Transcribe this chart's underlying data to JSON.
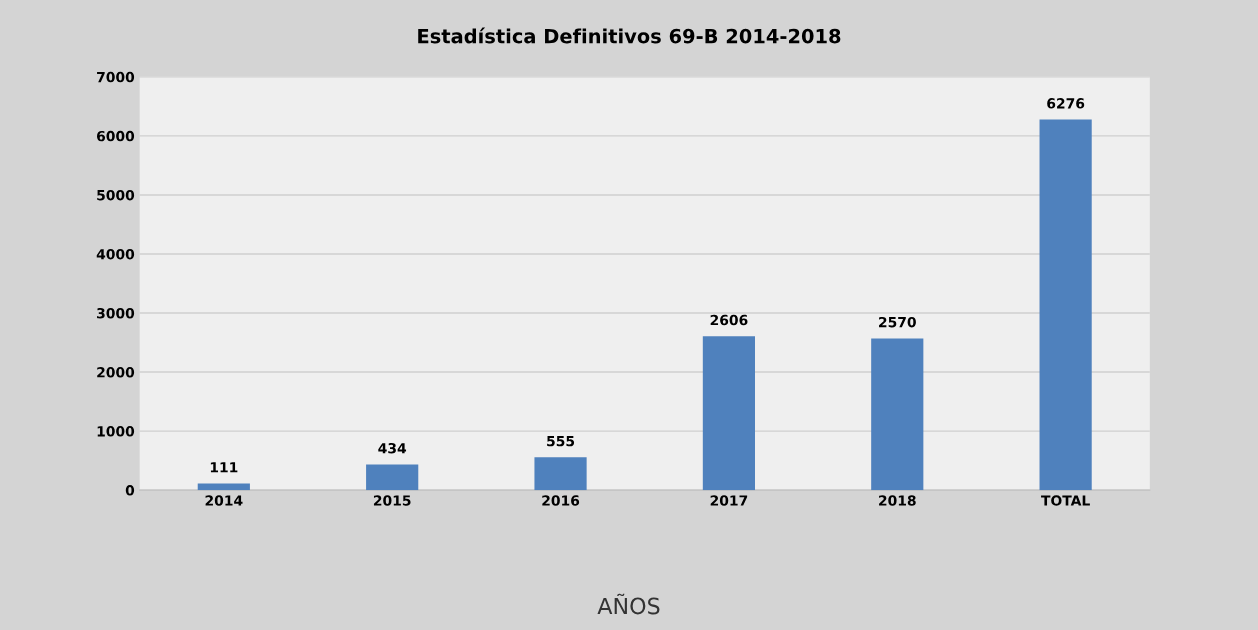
{
  "chart_data": {
    "type": "bar",
    "title": "Estadística Definitivos 69-B 2014-2018",
    "xlabel": "AÑOS",
    "categories": [
      "2014",
      "2015",
      "2016",
      "2017",
      "2018",
      "TOTAL"
    ],
    "values": [
      111,
      434,
      555,
      2606,
      2570,
      6276
    ],
    "color": "#4f81bd",
    "ylim": [
      0,
      7000
    ],
    "yticks": [
      0,
      1000,
      2000,
      3000,
      4000,
      5000,
      6000,
      7000
    ],
    "grid": "y",
    "data_labels": true,
    "legend": false
  }
}
